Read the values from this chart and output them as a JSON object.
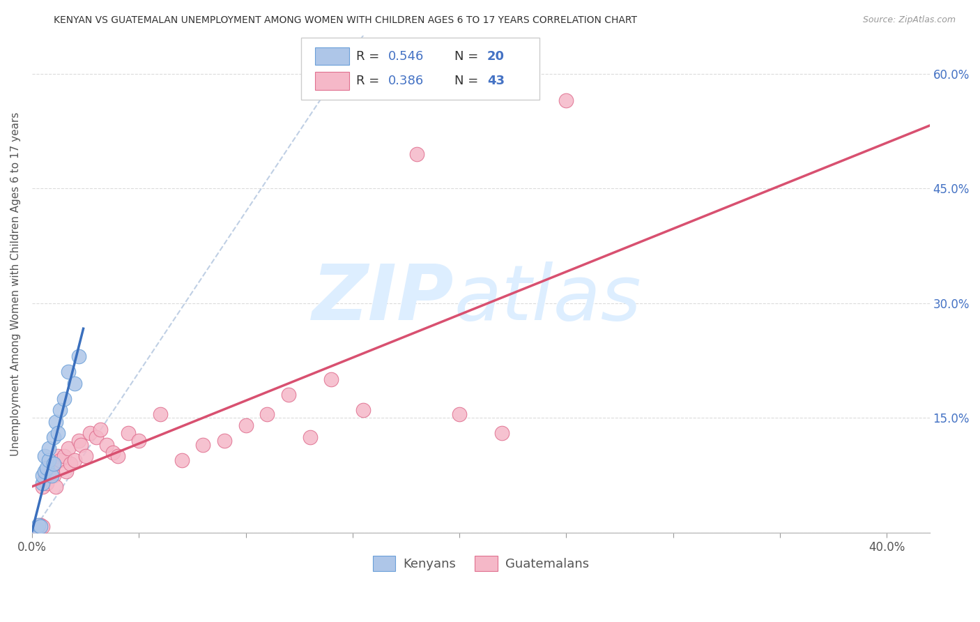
{
  "title": "KENYAN VS GUATEMALAN UNEMPLOYMENT AMONG WOMEN WITH CHILDREN AGES 6 TO 17 YEARS CORRELATION CHART",
  "source": "Source: ZipAtlas.com",
  "ylabel": "Unemployment Among Women with Children Ages 6 to 17 years",
  "kenyan_R": 0.546,
  "kenyan_N": 20,
  "guatemalan_R": 0.386,
  "guatemalan_N": 43,
  "kenyan_color": "#aec6e8",
  "kenyan_edge_color": "#6a9fd8",
  "kenyan_line_color": "#3a6fbd",
  "guatemalan_color": "#f5b8c8",
  "guatemalan_edge_color": "#e07090",
  "guatemalan_line_color": "#d85070",
  "right_y_color": "#4472c4",
  "kenyan_x": [
    0.002,
    0.003,
    0.004,
    0.005,
    0.005,
    0.006,
    0.006,
    0.007,
    0.008,
    0.008,
    0.009,
    0.01,
    0.01,
    0.011,
    0.012,
    0.013,
    0.015,
    0.017,
    0.02,
    0.022
  ],
  "kenyan_y": [
    0.005,
    0.01,
    0.008,
    0.065,
    0.075,
    0.08,
    0.1,
    0.085,
    0.095,
    0.11,
    0.075,
    0.09,
    0.125,
    0.145,
    0.13,
    0.16,
    0.175,
    0.21,
    0.195,
    0.23
  ],
  "guatemalan_x": [
    0.003,
    0.004,
    0.005,
    0.005,
    0.006,
    0.007,
    0.008,
    0.009,
    0.01,
    0.01,
    0.011,
    0.012,
    0.013,
    0.015,
    0.016,
    0.017,
    0.018,
    0.02,
    0.022,
    0.023,
    0.025,
    0.027,
    0.03,
    0.032,
    0.035,
    0.038,
    0.04,
    0.045,
    0.05,
    0.06,
    0.07,
    0.08,
    0.09,
    0.1,
    0.11,
    0.12,
    0.13,
    0.14,
    0.155,
    0.18,
    0.2,
    0.22,
    0.25
  ],
  "guatemalan_y": [
    0.005,
    0.01,
    0.008,
    0.06,
    0.07,
    0.065,
    0.075,
    0.08,
    0.075,
    0.09,
    0.06,
    0.1,
    0.095,
    0.1,
    0.08,
    0.11,
    0.09,
    0.095,
    0.12,
    0.115,
    0.1,
    0.13,
    0.125,
    0.135,
    0.115,
    0.105,
    0.1,
    0.13,
    0.12,
    0.155,
    0.095,
    0.115,
    0.12,
    0.14,
    0.155,
    0.18,
    0.125,
    0.2,
    0.16,
    0.495,
    0.155,
    0.13,
    0.565
  ],
  "ylim": [
    0.0,
    0.65
  ],
  "xlim": [
    0.0,
    0.42
  ],
  "background_color": "#ffffff",
  "grid_color": "#cccccc",
  "figsize": [
    14.06,
    8.92
  ],
  "dpi": 100
}
